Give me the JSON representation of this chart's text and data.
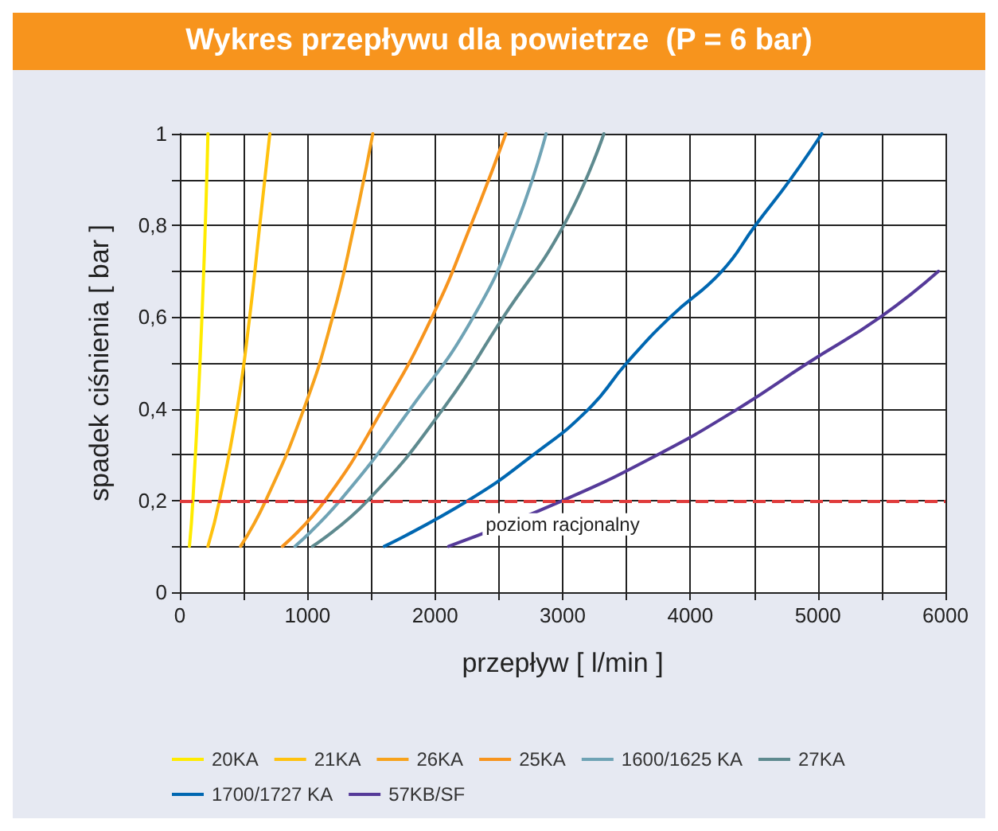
{
  "chart_data": {
    "type": "line",
    "title": "Wykres przepływu dla powietrze  (P = 6 bar)",
    "xlabel": "przepływ [ l/min ]",
    "ylabel": "spadek ciśnienia [ bar ]",
    "xlim": [
      0,
      6000
    ],
    "ylim": [
      0,
      1
    ],
    "xticks": [
      0,
      {
        "value": 500,
        "label": null
      },
      1000,
      {
        "value": 1500,
        "label": null
      },
      2000,
      {
        "value": 2500,
        "label": null
      },
      3000,
      {
        "value": 3500,
        "label": null
      },
      4000,
      {
        "value": 4500,
        "label": null
      },
      5000,
      {
        "value": 5500,
        "label": null
      },
      6000
    ],
    "yticks": [
      0,
      {
        "value": 0.1,
        "label": null
      },
      {
        "value": 0.2,
        "label": "0,2"
      },
      {
        "value": 0.3,
        "label": null
      },
      {
        "value": 0.4,
        "label": "0,4"
      },
      {
        "value": 0.5,
        "label": null
      },
      {
        "value": 0.6,
        "label": "0,6"
      },
      {
        "value": 0.7,
        "label": null
      },
      {
        "value": 0.8,
        "label": "0,8"
      },
      {
        "value": 0.9,
        "label": null
      },
      1
    ],
    "grid": true,
    "legend": "bottom",
    "marker": "none",
    "line_style": "solid",
    "ref_lines": [
      {
        "axis": "y",
        "value": 0.2,
        "label": "poziom racjonalny",
        "color": "#e03c3c",
        "line_style": "dashed"
      }
    ],
    "series": [
      {
        "name": "20KA",
        "color": "#ffeb00",
        "x": [
          75,
          102,
          173,
          220
        ],
        "values": [
          0.1,
          0.2,
          0.6,
          1
        ]
      },
      {
        "name": "21KA",
        "color": "#ffc20e",
        "x": [
          220,
          311,
          449,
          547,
          626,
          705
        ],
        "values": [
          0.1,
          0.2,
          0.4,
          0.6,
          0.8,
          1
        ]
      },
      {
        "name": "26KA",
        "color": "#f7a21b",
        "x": [
          476,
          673,
          972,
          1197,
          1366,
          1512
        ],
        "values": [
          0.1,
          0.2,
          0.4,
          0.6,
          0.8,
          1
        ]
      },
      {
        "name": "25KA",
        "color": "#f7941d",
        "x": [
          803,
          1138,
          1591,
          1976,
          2280,
          2555
        ],
        "values": [
          0.1,
          0.2,
          0.4,
          0.6,
          0.8,
          1
        ]
      },
      {
        "name": "1600/1625 KA",
        "color": "#6fa3b5",
        "x": [
          902,
          1256,
          1807,
          2299,
          2634,
          2870
        ],
        "values": [
          0.1,
          0.2,
          0.4,
          0.6,
          0.8,
          1
        ]
      },
      {
        "name": "27KA",
        "color": "#5e8a8f",
        "x": [
          1039,
          1472,
          2063,
          2535,
          3008,
          3323
        ],
        "values": [
          0.1,
          0.2,
          0.4,
          0.6,
          0.8,
          1
        ]
      },
      {
        "name": "1700/1727 KA",
        "color": "#0067b1",
        "x": [
          1602,
          2260,
          2772,
          3205,
          3502,
          3843,
          4247,
          4510,
          4784,
          5031
        ],
        "values": [
          0.1,
          0.2,
          0.3,
          0.4,
          0.5,
          0.6,
          0.7,
          0.8,
          0.9,
          1
        ]
      },
      {
        "name": "57KB/SF",
        "color": "#553a99",
        "x": [
          2106,
          3000,
          3745,
          4373,
          4922,
          5490,
          5945
        ],
        "values": [
          0.1,
          0.2,
          0.3,
          0.4,
          0.5,
          0.6,
          0.7
        ]
      }
    ]
  }
}
